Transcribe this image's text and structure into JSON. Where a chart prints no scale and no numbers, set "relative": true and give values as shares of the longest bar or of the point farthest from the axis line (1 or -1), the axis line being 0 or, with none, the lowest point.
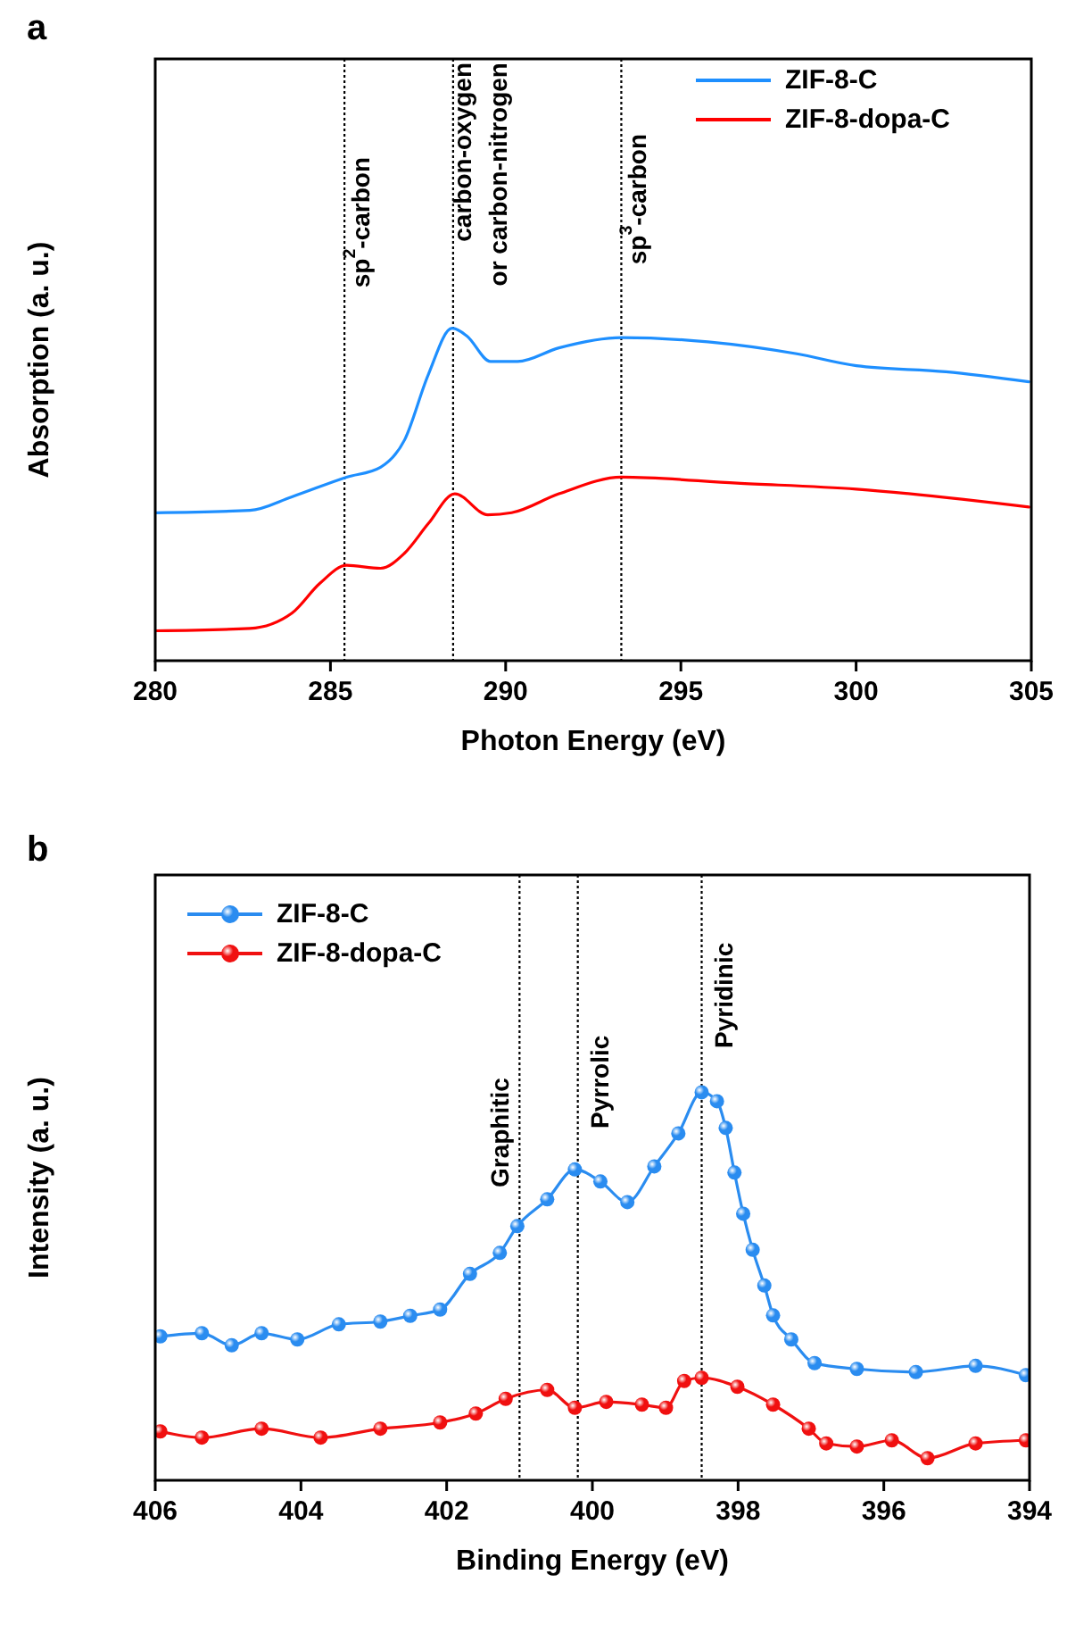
{
  "chart_data": [
    {
      "type": "line",
      "title": "a",
      "xlabel": "Photon Energy (eV)",
      "ylabel": "Absorption (a. u.)",
      "relative": true,
      "tick_labels": "x",
      "legend": "top right",
      "xlim": [
        280,
        305
      ],
      "xticks": [
        280,
        285,
        290,
        295,
        300,
        305
      ],
      "series": [
        {
          "name": "ZIF-8-C",
          "color": "#1e8fff",
          "x": [
            280.0,
            282.7,
            283.9,
            285.46,
            286.43,
            287.11,
            287.79,
            288.47,
            288.89,
            289.57,
            290.34,
            291.52,
            293.31,
            295.77,
            298.31,
            300.01,
            302.56,
            304.93
          ],
          "values": [
            0.445,
            0.452,
            0.493,
            0.552,
            0.582,
            0.663,
            0.86,
            1.0,
            0.977,
            0.9,
            0.9,
            0.941,
            0.972,
            0.959,
            0.923,
            0.887,
            0.869,
            0.839
          ]
        },
        {
          "name": "ZIF-8-dopa-C",
          "color": "#ff0000",
          "x": [
            280.0,
            282.7,
            283.9,
            284.7,
            285.46,
            286.43,
            287.11,
            287.79,
            288.55,
            289.49,
            290.17,
            291.52,
            293.31,
            296.6,
            300.01,
            304.93
          ],
          "values": [
            0.09,
            0.097,
            0.143,
            0.233,
            0.287,
            0.278,
            0.323,
            0.412,
            0.502,
            0.439,
            0.445,
            0.502,
            0.552,
            0.534,
            0.516,
            0.462
          ]
        }
      ],
      "ref_lines": [
        {
          "axis": "x",
          "value": 285.4,
          "label": "sp$^{2}$-carbon",
          "line_style": "dotted",
          "color": "#000000"
        },
        {
          "axis": "x",
          "value": 288.5,
          "label": "carbon-oxygen\nor carbon-nitrogen",
          "line_style": "dotted",
          "color": "#000000"
        },
        {
          "axis": "x",
          "value": 293.3,
          "label": "sp$^{3}$-carbon",
          "line_style": "dotted",
          "color": "#000000"
        }
      ]
    },
    {
      "type": "line",
      "title": "b",
      "xlabel": "Binding Energy (eV)",
      "ylabel": "Intensity (a. u.)",
      "relative": true,
      "tick_labels": "x",
      "legend": "top left",
      "marker": "circle",
      "xlim": [
        406,
        394
      ],
      "xticks": [
        406,
        404,
        402,
        400,
        398,
        396,
        394
      ],
      "series": [
        {
          "name": "ZIF-8-C",
          "color": "#2a8cf0",
          "x": [
            405.93,
            405.36,
            404.95,
            404.54,
            404.05,
            403.48,
            402.91,
            402.5,
            402.09,
            401.68,
            401.27,
            401.03,
            400.62,
            400.24,
            399.89,
            399.52,
            399.15,
            398.82,
            398.5,
            398.29,
            398.17,
            398.05,
            397.93,
            397.8,
            397.64,
            397.52,
            397.27,
            396.95,
            396.37,
            395.56,
            394.74,
            394.05
          ],
          "values": [
            0.371,
            0.379,
            0.348,
            0.379,
            0.363,
            0.402,
            0.409,
            0.424,
            0.44,
            0.532,
            0.586,
            0.655,
            0.724,
            0.801,
            0.77,
            0.717,
            0.809,
            0.894,
            1.0,
            0.977,
            0.908,
            0.793,
            0.687,
            0.594,
            0.502,
            0.425,
            0.363,
            0.302,
            0.287,
            0.279,
            0.295,
            0.271
          ]
        },
        {
          "name": "ZIF-8-dopa-C",
          "color": "#f01010",
          "x": [
            405.93,
            405.36,
            404.54,
            403.73,
            402.91,
            402.09,
            401.6,
            401.19,
            400.62,
            400.24,
            399.81,
            399.32,
            398.99,
            398.74,
            398.5,
            398.01,
            397.52,
            397.03,
            396.79,
            396.37,
            395.89,
            395.4,
            394.74,
            394.05
          ],
          "values": [
            0.126,
            0.11,
            0.133,
            0.11,
            0.133,
            0.149,
            0.172,
            0.21,
            0.233,
            0.187,
            0.202,
            0.195,
            0.187,
            0.256,
            0.264,
            0.241,
            0.195,
            0.133,
            0.095,
            0.087,
            0.103,
            0.057,
            0.095,
            0.103
          ]
        }
      ],
      "ref_lines": [
        {
          "axis": "x",
          "value": 401.0,
          "label": "Graphitic",
          "line_style": "dotted",
          "color": "#000000"
        },
        {
          "axis": "x",
          "value": 400.2,
          "label": "Pyrrolic",
          "line_style": "dotted",
          "color": "#000000"
        },
        {
          "axis": "x",
          "value": 398.5,
          "label": "Pyridinic",
          "line_style": "dotted",
          "color": "#000000"
        }
      ]
    }
  ]
}
